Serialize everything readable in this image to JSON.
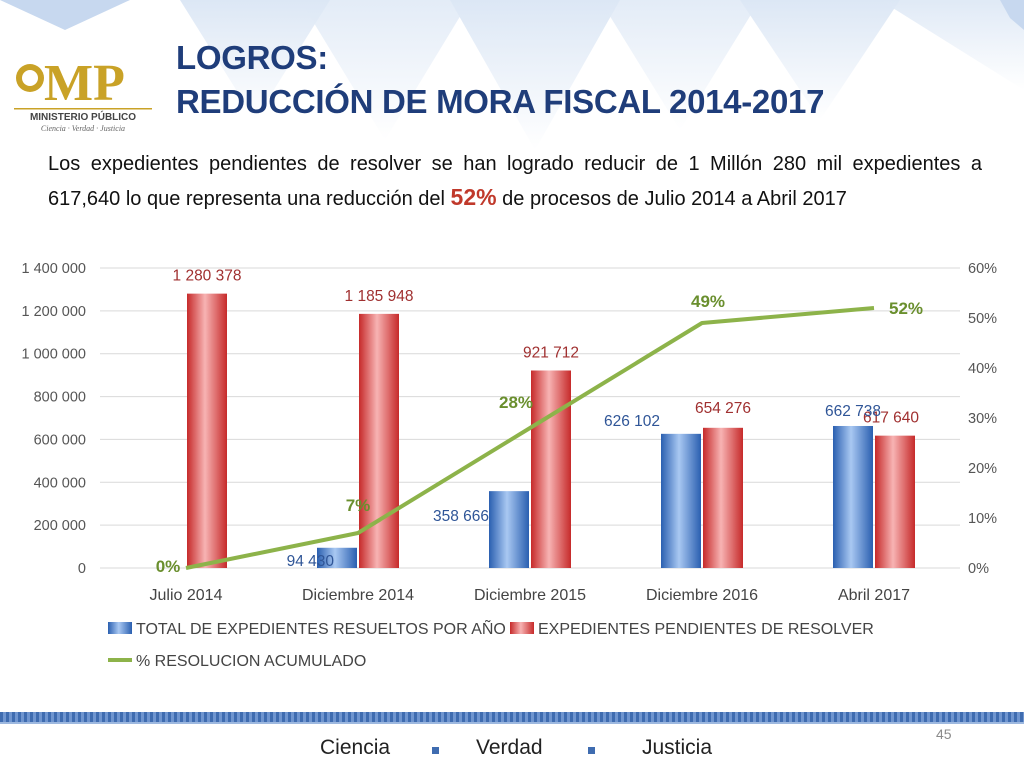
{
  "header": {
    "title_line1": "LOGROS:",
    "title_line2": "REDUCCIÓN DE MORA FISCAL 2014-2017",
    "logo_text": "MP",
    "logo_sub": "MINISTERIO PÚBLICO",
    "logo_motto": "Ciencia · Verdad · Justicia"
  },
  "description": {
    "part1": "Los expedientes pendientes de resolver se han logrado reducir de 1 Millón 280 mil expedientes a 617,640 lo que representa una reducción del ",
    "highlight": "52%",
    "part2": " de procesos de Julio 2014 a Abril 2017"
  },
  "chart_data": {
    "type": "bar",
    "categories": [
      "Julio 2014",
      "Diciembre 2014",
      "Diciembre 2015",
      "Diciembre 2016",
      "Abril 2017"
    ],
    "series": [
      {
        "name": "TOTAL DE EXPEDIENTES RESUELTOS POR AÑO",
        "type": "bar",
        "axis": "left",
        "values": [
          0,
          94430,
          358666,
          626102,
          662738
        ],
        "labels": [
          "",
          "94 430",
          "358 666",
          "626 102",
          "662 738"
        ],
        "color": "#4a86d8"
      },
      {
        "name": "EXPEDIENTES PENDIENTES DE RESOLVER",
        "type": "bar",
        "axis": "left",
        "values": [
          1280378,
          1185948,
          921712,
          654276,
          617640
        ],
        "labels": [
          "1 280 378",
          "1 185 948",
          "921 712",
          "654 276",
          "617 640"
        ],
        "color": "#e05a5a"
      },
      {
        "name": "% RESOLUCION ACUMULADO",
        "type": "line",
        "axis": "right",
        "values": [
          0,
          7,
          28,
          49,
          52
        ],
        "labels": [
          "0%",
          "7%",
          "28%",
          "49%",
          "52%"
        ],
        "color": "#8db34a"
      }
    ],
    "y_left": {
      "min": 0,
      "max": 1400000,
      "ticks": [
        "0",
        "200 000",
        "400 000",
        "600 000",
        "800 000",
        "1 000 000",
        "1 200 000",
        "1 400 000"
      ]
    },
    "y_right": {
      "min": 0,
      "max": 60,
      "ticks": [
        "0%",
        "10%",
        "20%",
        "30%",
        "40%",
        "50%",
        "60%"
      ]
    },
    "grid": true,
    "legend_position": "bottom"
  },
  "footer": {
    "page_number": "45",
    "words": [
      "Ciencia",
      "Verdad",
      "Justicia"
    ]
  },
  "colors": {
    "title": "#1f3d7a",
    "highlight": "#c0392b",
    "blue_label": "#2f5597",
    "red_label": "#a03030",
    "green_label": "#6a8f2e"
  }
}
